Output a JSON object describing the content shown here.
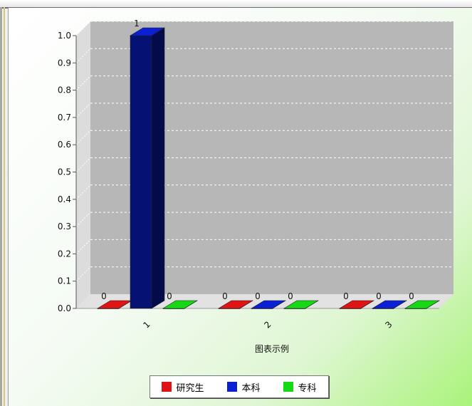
{
  "chart_data": {
    "type": "bar",
    "categories": [
      "1",
      "2",
      "3"
    ],
    "series": [
      {
        "name": "研究生",
        "values": [
          0,
          0,
          0
        ],
        "color": "#e01414"
      },
      {
        "name": "本科",
        "values": [
          1,
          0,
          0
        ],
        "color": "#0b1fd3"
      },
      {
        "name": "专科",
        "values": [
          0,
          0,
          0
        ],
        "color": "#16d916"
      }
    ],
    "xlabel": "图表示例",
    "ylabel": "",
    "ylim": [
      0,
      1.0
    ],
    "yticks": [
      "0.0",
      "0.1",
      "0.2",
      "0.3",
      "0.4",
      "0.5",
      "0.6",
      "0.7",
      "0.8",
      "0.9",
      "1.0"
    ],
    "data_labels": true,
    "grid": true,
    "legend": "bottom"
  }
}
